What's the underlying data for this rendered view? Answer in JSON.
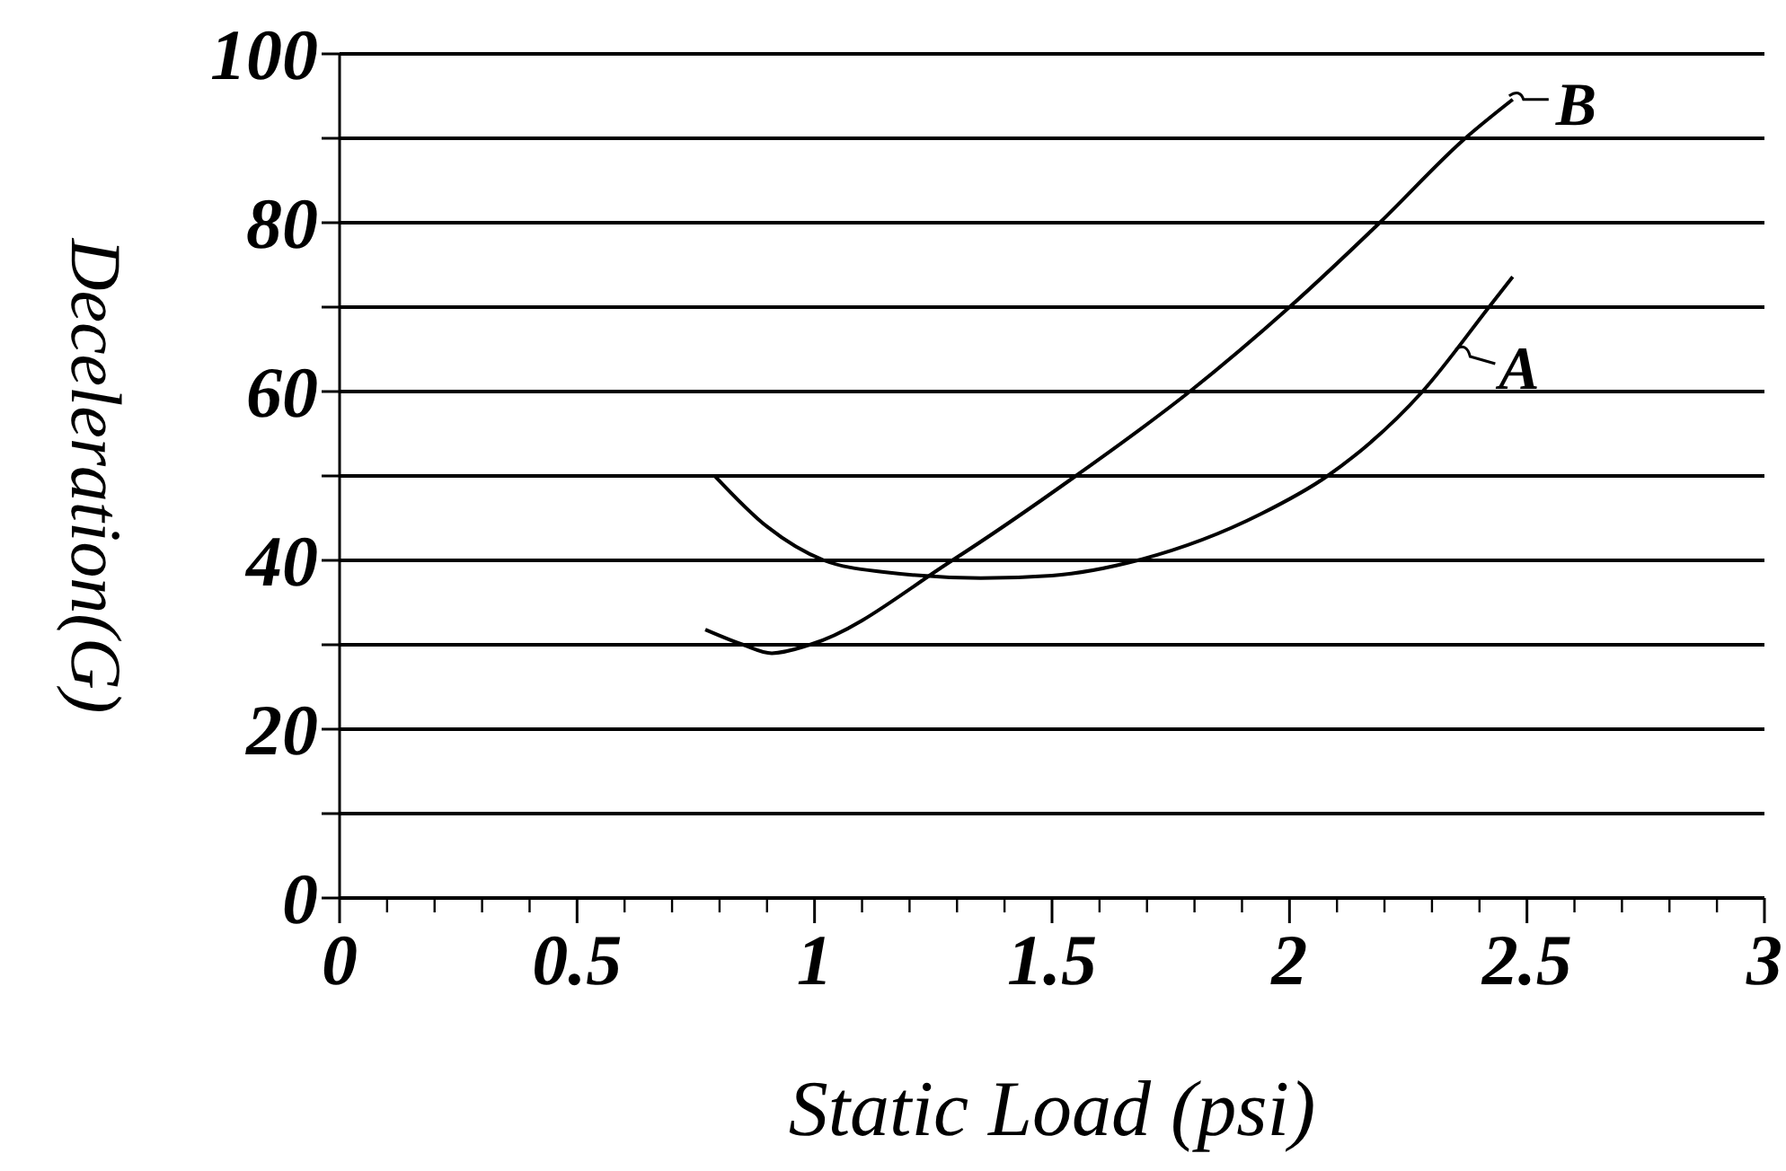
{
  "chart_data": {
    "type": "line",
    "xlabel": "Static Load (psi)",
    "ylabel": "Deceleration(G)",
    "xlim": [
      0,
      3
    ],
    "xticks": [
      0,
      0.5,
      1,
      1.5,
      2,
      2.5,
      3
    ],
    "ylim": [
      0,
      100
    ],
    "yticks": [
      0,
      {
        "value": 10,
        "label": null
      },
      20,
      {
        "value": 30,
        "label": null
      },
      40,
      {
        "value": 50,
        "label": null
      },
      60,
      {
        "value": 70,
        "label": null
      },
      80,
      {
        "value": 90,
        "label": null
      },
      100
    ],
    "grid": "y",
    "legend": "top right",
    "marker": "none",
    "line_style": "solid",
    "series": [
      {
        "name": "A",
        "color": "#000000",
        "x": [
          0.79,
          0.9,
          1.02,
          1.15,
          1.35,
          1.5,
          1.68,
          1.94,
          2.08,
          2.28,
          2.42,
          2.47
        ],
        "values": [
          50,
          44,
          40,
          38.6,
          37.9,
          38.2,
          40,
          45.5,
          50,
          60,
          70,
          73.6
        ]
      },
      {
        "name": "B",
        "color": "#000000",
        "x": [
          0.77,
          0.85,
          0.91,
          0.99,
          1.29,
          1.55,
          1.79,
          2.0,
          2.19,
          2.37,
          2.47
        ],
        "values": [
          31.8,
          30,
          29,
          30,
          40,
          50,
          60,
          70,
          80,
          90,
          94.6
        ]
      }
    ]
  }
}
